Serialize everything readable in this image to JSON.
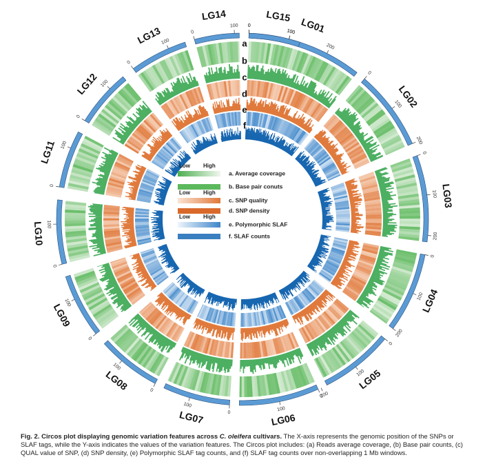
{
  "figure": {
    "lgs": [
      {
        "name": "LG01",
        "ticks": [
          0,
          100,
          200
        ]
      },
      {
        "name": "LG02",
        "ticks": [
          0,
          100,
          200
        ]
      },
      {
        "name": "LG03",
        "ticks": [
          0,
          100,
          200
        ]
      },
      {
        "name": "LG04",
        "ticks": [
          0,
          100,
          200
        ]
      },
      {
        "name": "LG05",
        "ticks": [
          0,
          100,
          200
        ]
      },
      {
        "name": "LG06",
        "ticks": [
          0,
          100
        ]
      },
      {
        "name": "LG07",
        "ticks": [
          0,
          100
        ]
      },
      {
        "name": "LG08",
        "ticks": [
          0,
          100
        ]
      },
      {
        "name": "LG09",
        "ticks": [
          0,
          100
        ]
      },
      {
        "name": "LG10",
        "ticks": [
          0,
          100
        ]
      },
      {
        "name": "LG11",
        "ticks": [
          0,
          100
        ]
      },
      {
        "name": "LG12",
        "ticks": [
          0,
          100
        ]
      },
      {
        "name": "LG13",
        "ticks": [
          0,
          100
        ]
      },
      {
        "name": "LG14",
        "ticks": [
          0,
          100
        ]
      },
      {
        "name": "LG15",
        "ticks": [
          0,
          100
        ]
      }
    ],
    "tracks": [
      "a",
      "b",
      "c",
      "d",
      "e",
      "f"
    ],
    "legend": {
      "low": "Low",
      "high": "High",
      "items": [
        "a.  Average coverage",
        "b.  Base pair conuts",
        "c.  SNP quality",
        "d.  SNP density",
        "e.  Polymorphic SLAF",
        "f.  SLAF counts"
      ]
    },
    "caption": {
      "lead": "Fig. 2. Circos plot displaying genomic variation features across ",
      "species": "C. oleifera",
      "lead_end": " cultivars.",
      "body": " The X-axis represents the genomic position of the SNPs or SLAF tags, while the Y-axis indicates the values of the variation features. The Circos plot includes: (a) Reads average coverage, (b) Base pair counts, (c) QUAL value of SNP, (d) SNP density, (e) Polymorphic SLAF tag counts, and (f) SLAF tag counts over non-overlapping 1 Mb windows."
    }
  }
}
